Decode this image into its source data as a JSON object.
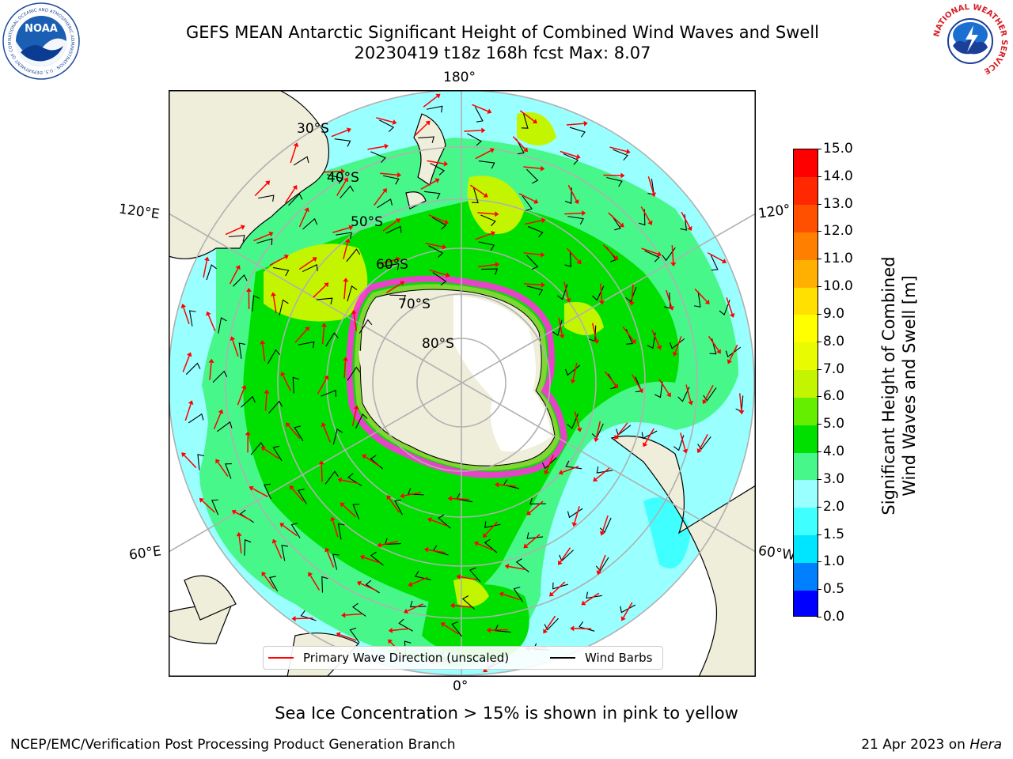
{
  "header": {
    "title_line1": "GEFS MEAN Antarctic Significant Height of Combined Wind Waves and Swell",
    "title_line2": "20230419 t18z 168h fcst   Max: 8.07"
  },
  "logos": {
    "noaa_text": "NOAA",
    "noaa_ring_text": "NATIONAL OCEANIC AND ATMOSPHERIC ADMINISTRATION · U.S. DEPARTMENT OF COMMERCE",
    "nws_ring_text": "NATIONAL WEATHER SERVICE"
  },
  "map": {
    "projection": "south-polar-stereographic",
    "lon_labels": {
      "top": "180°",
      "bottom": "0°",
      "left_upper": "120°E",
      "left_lower": "60°E",
      "right_upper": "120°",
      "right_lower": "60°W"
    },
    "lat_labels": [
      "30°S",
      "40°S",
      "50°S",
      "60°S",
      "70°S",
      "80°S"
    ],
    "colors": {
      "land": "#efeedb",
      "ice_shelf": "#ffffff",
      "sea_ice_edge": "#ff33dd",
      "grid": "#b0b0b0",
      "wave_arrow": "#ff0000",
      "wind_barb": "#000000"
    }
  },
  "colorbar": {
    "label": "Significant Height of Combined\nWind Waves and Swell [m]",
    "ticks": [
      "0.0",
      "0.5",
      "1.0",
      "1.5",
      "2.0",
      "3.0",
      "4.0",
      "5.0",
      "6.0",
      "7.0",
      "8.0",
      "9.0",
      "10.0",
      "11.0",
      "12.0",
      "13.0",
      "14.0",
      "15.0"
    ],
    "colors": [
      "#0000ff",
      "#0080ff",
      "#00e5ff",
      "#40ffff",
      "#99ffff",
      "#48f78a",
      "#00e000",
      "#66ee00",
      "#c4f500",
      "#e8fb00",
      "#ffff00",
      "#ffe000",
      "#ffb000",
      "#ff8000",
      "#ff5000",
      "#ff2800",
      "#ff0000"
    ]
  },
  "legend": {
    "wave_label": "Primary Wave Direction (unscaled)",
    "barb_label": "Wind Barbs"
  },
  "note": "Sea Ice Concentration > 15% is shown in pink to yellow",
  "footer": {
    "left": "NCEP/EMC/Verification Post Processing Product Generation Branch",
    "right_prefix": "21 Apr 2023 on ",
    "right_machine": "Hera"
  }
}
